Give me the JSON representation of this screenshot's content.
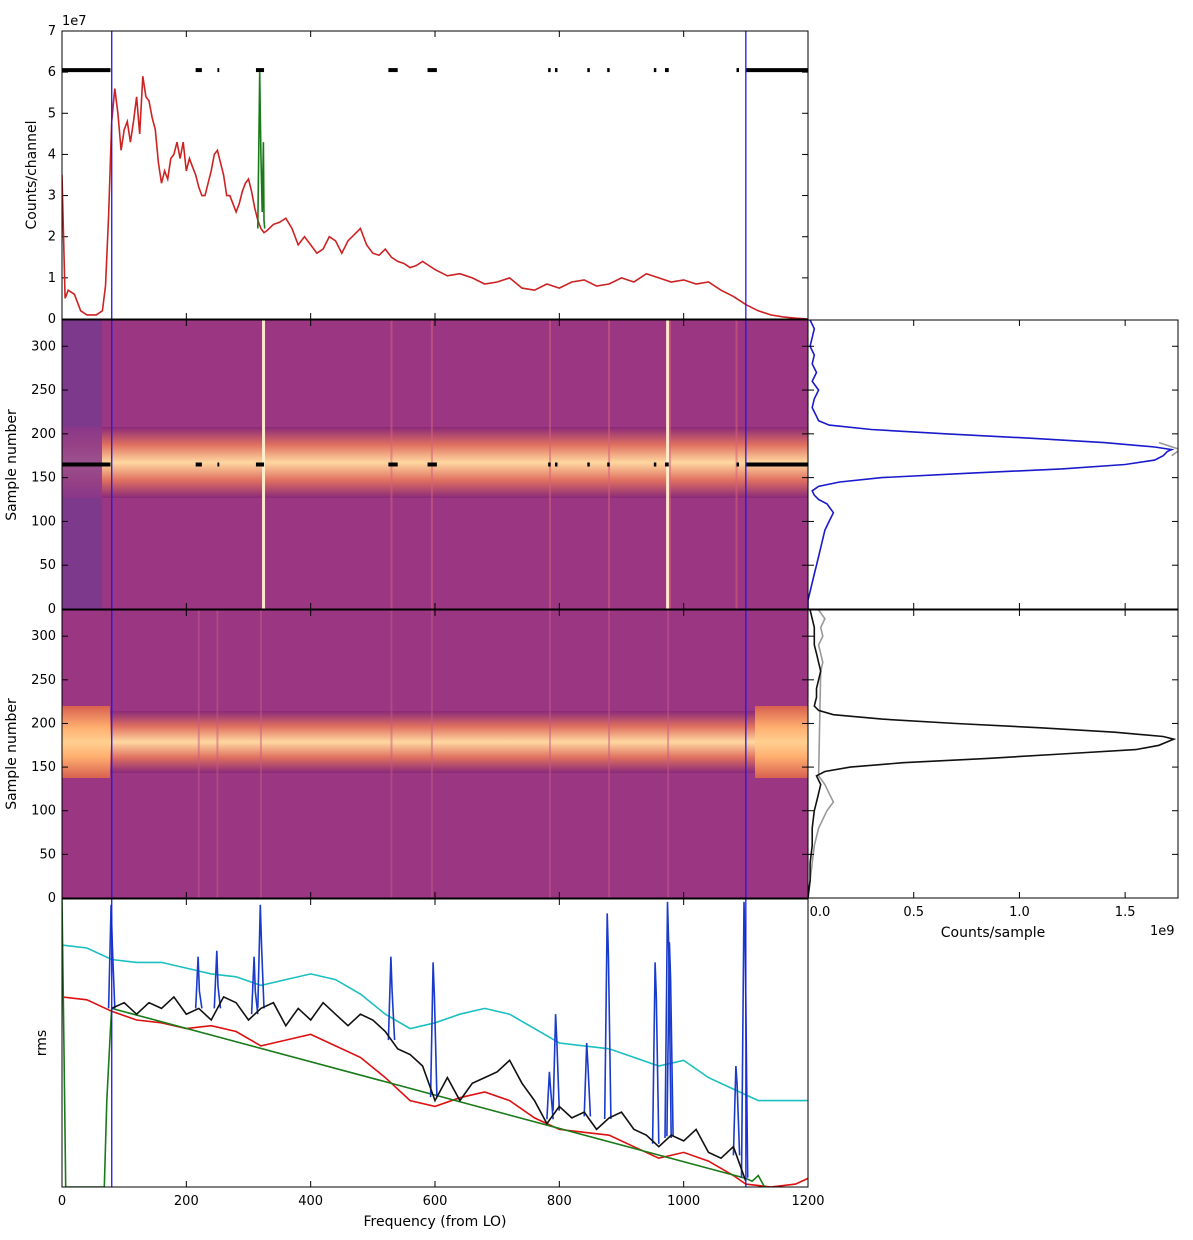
{
  "chart_data": [
    {
      "type": "line",
      "panel": "top spectrum",
      "ylabel": "Counts/channel",
      "y_exponent": "1e7",
      "xlim": [
        0,
        1200
      ],
      "ylim": [
        0,
        7
      ],
      "yticks": [
        "0",
        "1",
        "2",
        "3",
        "4",
        "5",
        "6",
        "7"
      ],
      "vlines_x": [
        80,
        1100
      ],
      "flag_level": 6.05,
      "flag_segments": [
        [
          0,
          78
        ],
        [
          215,
          225
        ],
        [
          250,
          253
        ],
        [
          312,
          325
        ],
        [
          525,
          540
        ],
        [
          588,
          603
        ],
        [
          782,
          786
        ],
        [
          793,
          797
        ],
        [
          845,
          849
        ],
        [
          877,
          881
        ],
        [
          952,
          956
        ],
        [
          970,
          976
        ],
        [
          1085,
          1089
        ],
        [
          1100,
          1200
        ]
      ],
      "series": [
        {
          "color": "#cc2222",
          "x": [
            0,
            5,
            10,
            20,
            30,
            40,
            55,
            65,
            70,
            75,
            80,
            85,
            90,
            95,
            100,
            105,
            110,
            115,
            120,
            125,
            130,
            135,
            140,
            145,
            150,
            155,
            160,
            165,
            170,
            175,
            180,
            185,
            190,
            195,
            200,
            205,
            210,
            215,
            220,
            225,
            230,
            235,
            240,
            245,
            250,
            255,
            260,
            265,
            270,
            275,
            280,
            285,
            290,
            295,
            300,
            305,
            310,
            315,
            320,
            325,
            330,
            340,
            350,
            360,
            370,
            380,
            390,
            400,
            410,
            420,
            430,
            440,
            450,
            460,
            470,
            480,
            490,
            500,
            510,
            520,
            530,
            540,
            550,
            560,
            570,
            580,
            590,
            600,
            620,
            640,
            660,
            680,
            700,
            720,
            740,
            760,
            780,
            800,
            820,
            840,
            860,
            880,
            900,
            920,
            940,
            960,
            980,
            1000,
            1020,
            1040,
            1060,
            1080,
            1100,
            1120,
            1140,
            1160,
            1180,
            1200
          ],
          "y": [
            3.5,
            0.5,
            0.7,
            0.6,
            0.2,
            0.1,
            0.1,
            0.2,
            0.8,
            2.5,
            4.8,
            5.6,
            5.0,
            4.1,
            4.6,
            4.8,
            4.3,
            4.8,
            5.4,
            4.5,
            5.9,
            5.4,
            5.3,
            4.9,
            4.6,
            3.8,
            3.3,
            3.6,
            3.4,
            3.9,
            4.0,
            4.3,
            3.9,
            4.3,
            3.6,
            3.9,
            3.7,
            3.5,
            3.2,
            3.0,
            3.0,
            3.3,
            3.6,
            4.0,
            4.1,
            3.8,
            3.5,
            3.0,
            3.0,
            2.8,
            2.6,
            2.8,
            3.1,
            3.3,
            3.4,
            3.1,
            2.7,
            2.4,
            2.2,
            2.1,
            2.15,
            2.3,
            2.35,
            2.45,
            2.2,
            1.8,
            2.0,
            1.8,
            1.6,
            1.7,
            2.0,
            1.9,
            1.6,
            1.9,
            2.05,
            2.2,
            1.8,
            1.6,
            1.55,
            1.7,
            1.5,
            1.4,
            1.35,
            1.25,
            1.3,
            1.4,
            1.3,
            1.2,
            1.05,
            1.1,
            1.0,
            0.85,
            0.9,
            1.0,
            0.75,
            0.7,
            0.85,
            0.75,
            0.9,
            0.95,
            0.8,
            0.85,
            1.0,
            0.9,
            1.1,
            1.0,
            0.9,
            0.95,
            0.85,
            0.9,
            0.7,
            0.55,
            0.35,
            0.2,
            0.1,
            0.05,
            0.02,
            0.0
          ]
        },
        {
          "color": "#1a7a1a",
          "x": [
            315,
            318,
            320,
            322,
            324,
            325,
            326
          ],
          "y": [
            2.2,
            6.0,
            4.0,
            2.6,
            4.3,
            2.4,
            2.2
          ]
        }
      ]
    },
    {
      "type": "heatmap",
      "panel": "waterfall (raw)",
      "ylabel": "Sample number",
      "xlim": [
        0,
        1200
      ],
      "ylim": [
        0,
        330
      ],
      "yticks": [
        "0",
        "50",
        "100",
        "150",
        "200",
        "250",
        "300"
      ],
      "bright_band_samples": [
        160,
        205
      ],
      "band_center": 183,
      "vertical_features_x": [
        325,
        530,
        595,
        785,
        880,
        975,
        978,
        1085
      ],
      "flag_row_sample": 165
    },
    {
      "type": "heatmap",
      "panel": "waterfall (cleaned)",
      "ylabel": "Sample number",
      "xlim": [
        0,
        1200
      ],
      "ylim": [
        0,
        330
      ],
      "yticks": [
        "0",
        "50",
        "100",
        "150",
        "200",
        "250",
        "300"
      ],
      "bright_band_samples": [
        160,
        205
      ],
      "band_center": 183
    },
    {
      "type": "line",
      "panel": "right profiles",
      "xlabel": "Counts/sample",
      "x_exponent": "1e9",
      "xlim": [
        0,
        1.75
      ],
      "xticks": [
        "0.0",
        "0.5",
        "1.0",
        "1.5"
      ],
      "ylim": [
        0,
        330
      ],
      "upper_profile": {
        "blue": {
          "y": [
            0,
            10,
            20,
            30,
            40,
            50,
            60,
            70,
            80,
            90,
            100,
            110,
            120,
            125,
            130,
            135,
            140,
            145,
            150,
            155,
            160,
            165,
            170,
            175,
            180,
            182,
            185,
            190,
            195,
            200,
            205,
            210,
            215,
            220,
            230,
            240,
            250,
            260,
            270,
            280,
            290,
            300,
            310,
            320,
            330
          ],
          "x": [
            0.0,
            0.0,
            0.01,
            0.02,
            0.03,
            0.04,
            0.05,
            0.06,
            0.07,
            0.08,
            0.1,
            0.12,
            0.09,
            0.05,
            0.03,
            0.02,
            0.05,
            0.15,
            0.35,
            0.75,
            1.2,
            1.5,
            1.64,
            1.68,
            1.7,
            1.72,
            1.64,
            1.4,
            1.05,
            0.65,
            0.3,
            0.1,
            0.05,
            0.04,
            0.02,
            0.03,
            0.05,
            0.02,
            0.04,
            0.02,
            0.03,
            0.01,
            0.02,
            0.03,
            0.01
          ]
        },
        "grey": {
          "y": [
            175,
            182,
            190
          ],
          "x": [
            1.72,
            1.76,
            1.66
          ]
        }
      },
      "lower_profile": {
        "black": {
          "y": [
            0,
            20,
            40,
            60,
            80,
            100,
            110,
            120,
            130,
            140,
            145,
            150,
            155,
            160,
            165,
            170,
            175,
            180,
            182,
            185,
            190,
            195,
            200,
            205,
            210,
            215,
            220,
            230,
            240,
            250,
            260,
            270,
            280,
            290,
            300,
            310,
            320,
            330
          ],
          "x": [
            0.0,
            0.01,
            0.01,
            0.02,
            0.02,
            0.03,
            0.04,
            0.05,
            0.06,
            0.04,
            0.08,
            0.2,
            0.45,
            0.85,
            1.2,
            1.55,
            1.66,
            1.71,
            1.73,
            1.68,
            1.45,
            1.1,
            0.7,
            0.35,
            0.12,
            0.05,
            0.03,
            0.04,
            0.04,
            0.05,
            0.06,
            0.05,
            0.04,
            0.03,
            0.03,
            0.03,
            0.02,
            0.01
          ]
        },
        "grey": {
          "y": [
            0,
            20,
            40,
            60,
            80,
            100,
            110,
            120,
            130,
            140,
            260,
            270,
            280,
            290,
            300,
            310,
            320,
            330
          ],
          "x": [
            0.0,
            0.01,
            0.02,
            0.03,
            0.05,
            0.09,
            0.12,
            0.1,
            0.08,
            0.05,
            0.06,
            0.07,
            0.06,
            0.05,
            0.07,
            0.06,
            0.08,
            0.05
          ]
        }
      }
    },
    {
      "type": "line",
      "panel": "bottom rms",
      "xlabel": "Frequency (from LO)",
      "ylabel": "rms",
      "xlim": [
        0,
        1200
      ],
      "ylim": [
        0,
        1
      ],
      "xticks": [
        "0",
        "200",
        "400",
        "600",
        "800",
        "1000",
        "1200"
      ],
      "vlines_x": [
        80,
        1100
      ],
      "series": [
        {
          "color": "#1bbfbf",
          "x": [
            0,
            40,
            80,
            120,
            160,
            200,
            240,
            280,
            320,
            360,
            400,
            440,
            480,
            520,
            560,
            600,
            640,
            680,
            720,
            760,
            800,
            840,
            880,
            920,
            960,
            1000,
            1040,
            1080,
            1120,
            1160,
            1200
          ],
          "y": [
            0.84,
            0.83,
            0.79,
            0.78,
            0.78,
            0.76,
            0.74,
            0.73,
            0.7,
            0.72,
            0.74,
            0.72,
            0.67,
            0.6,
            0.55,
            0.57,
            0.6,
            0.62,
            0.6,
            0.55,
            0.5,
            0.49,
            0.48,
            0.45,
            0.42,
            0.44,
            0.38,
            0.34,
            0.3,
            0.3,
            0.3
          ]
        },
        {
          "color": "#dd1111",
          "x": [
            0,
            40,
            80,
            120,
            160,
            200,
            240,
            280,
            320,
            360,
            400,
            440,
            480,
            520,
            560,
            600,
            640,
            680,
            720,
            760,
            800,
            840,
            880,
            920,
            960,
            1000,
            1040,
            1080,
            1100,
            1140,
            1180,
            1200
          ],
          "y": [
            0.66,
            0.65,
            0.61,
            0.58,
            0.57,
            0.55,
            0.56,
            0.54,
            0.49,
            0.51,
            0.53,
            0.49,
            0.45,
            0.38,
            0.3,
            0.28,
            0.31,
            0.33,
            0.3,
            0.24,
            0.2,
            0.19,
            0.18,
            0.14,
            0.1,
            0.12,
            0.09,
            0.04,
            0.01,
            0.0,
            0.01,
            0.03
          ]
        },
        {
          "color": "#111111",
          "x": [
            80,
            100,
            120,
            140,
            160,
            180,
            200,
            220,
            240,
            260,
            280,
            300,
            320,
            340,
            360,
            380,
            400,
            420,
            440,
            460,
            480,
            500,
            520,
            540,
            560,
            580,
            600,
            620,
            640,
            660,
            680,
            700,
            720,
            740,
            760,
            780,
            800,
            820,
            840,
            860,
            880,
            900,
            920,
            940,
            960,
            980,
            1000,
            1020,
            1040,
            1060,
            1080,
            1100
          ],
          "y": [
            0.62,
            0.64,
            0.6,
            0.64,
            0.62,
            0.66,
            0.6,
            0.62,
            0.58,
            0.66,
            0.64,
            0.58,
            0.62,
            0.64,
            0.56,
            0.62,
            0.58,
            0.64,
            0.6,
            0.56,
            0.6,
            0.58,
            0.54,
            0.48,
            0.46,
            0.42,
            0.3,
            0.38,
            0.3,
            0.36,
            0.38,
            0.4,
            0.44,
            0.36,
            0.3,
            0.22,
            0.28,
            0.24,
            0.26,
            0.2,
            0.24,
            0.26,
            0.2,
            0.18,
            0.14,
            0.18,
            0.16,
            0.2,
            0.12,
            0.1,
            0.14,
            0.02
          ]
        },
        {
          "color": "#1a3acc",
          "spikes_x": [
            80,
            220,
            250,
            310,
            320,
            530,
            598,
            785,
            795,
            845,
            878,
            955,
            975,
            978,
            1085,
            1098
          ],
          "spikes_y": [
            0.98,
            0.8,
            0.82,
            0.8,
            0.98,
            0.8,
            0.78,
            0.4,
            0.6,
            0.5,
            0.95,
            0.78,
            0.99,
            0.85,
            0.42,
            0.99
          ]
        },
        {
          "color": "#1a7a1a",
          "x": [
            0,
            3,
            6,
            10,
            20,
            60,
            68,
            72,
            78,
            80,
            1100,
            1110,
            1120,
            1130
          ],
          "y": [
            1.0,
            0.5,
            0.0,
            0.0,
            0.0,
            0.0,
            0.0,
            0.3,
            0.55,
            0.62,
            0.03,
            0.02,
            0.04,
            0.0
          ]
        }
      ]
    }
  ],
  "labels": {
    "top_ylabel": "Counts/channel",
    "top_exponent": "1e7",
    "wf1_ylabel": "Sample number",
    "wf2_ylabel": "Sample number",
    "rms_ylabel": "rms",
    "rms_xlabel": "Frequency (from LO)",
    "right_xlabel": "Counts/sample",
    "right_exponent": "1e9"
  }
}
